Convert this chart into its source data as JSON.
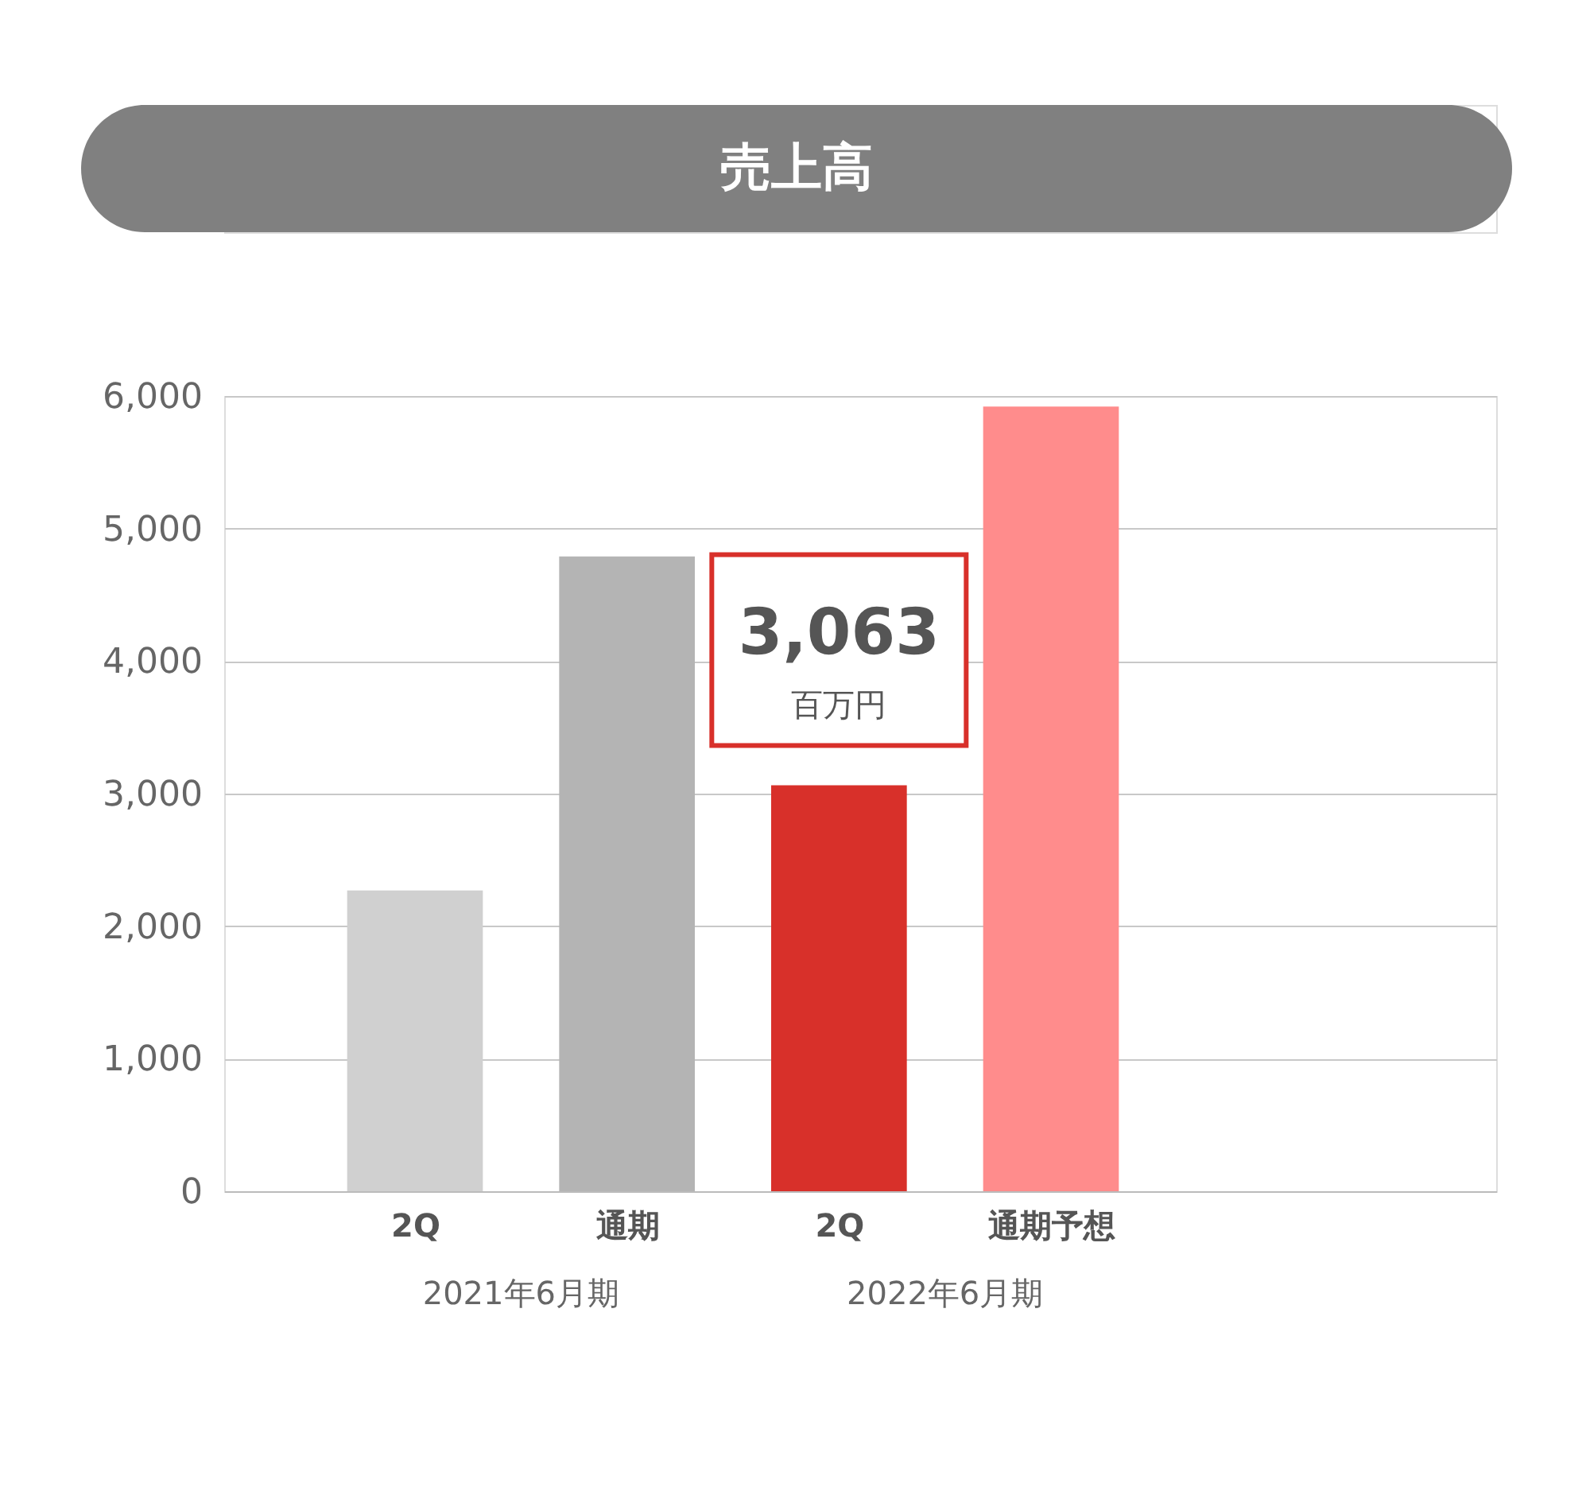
{
  "chart_data": {
    "type": "bar",
    "title": "売上高",
    "categories": [
      "2Q",
      "通期",
      "2Q",
      "通期予想"
    ],
    "values": [
      2270,
      4790,
      3063,
      5920
    ],
    "colors": [
      "#d0d0d0",
      "#b4b4b4",
      "#d8302a",
      "#ff8c8c"
    ],
    "value_labels": [
      null,
      null,
      "3,063",
      null
    ],
    "annotations": [
      "百万円",
      "2021年6月期",
      "2022年6月期"
    ],
    "ylim": [
      0,
      6000
    ],
    "yticks": [
      {
        "value": 0,
        "label": "0"
      },
      {
        "value": 1000,
        "label": "1,000"
      },
      {
        "value": 2000,
        "label": "2,000"
      },
      {
        "value": 3000,
        "label": "3,000"
      },
      {
        "value": 4000,
        "label": "4,000"
      },
      {
        "value": 5000,
        "label": "5,000"
      },
      {
        "value": 6000,
        "label": "6,000"
      }
    ],
    "grid": "y"
  }
}
